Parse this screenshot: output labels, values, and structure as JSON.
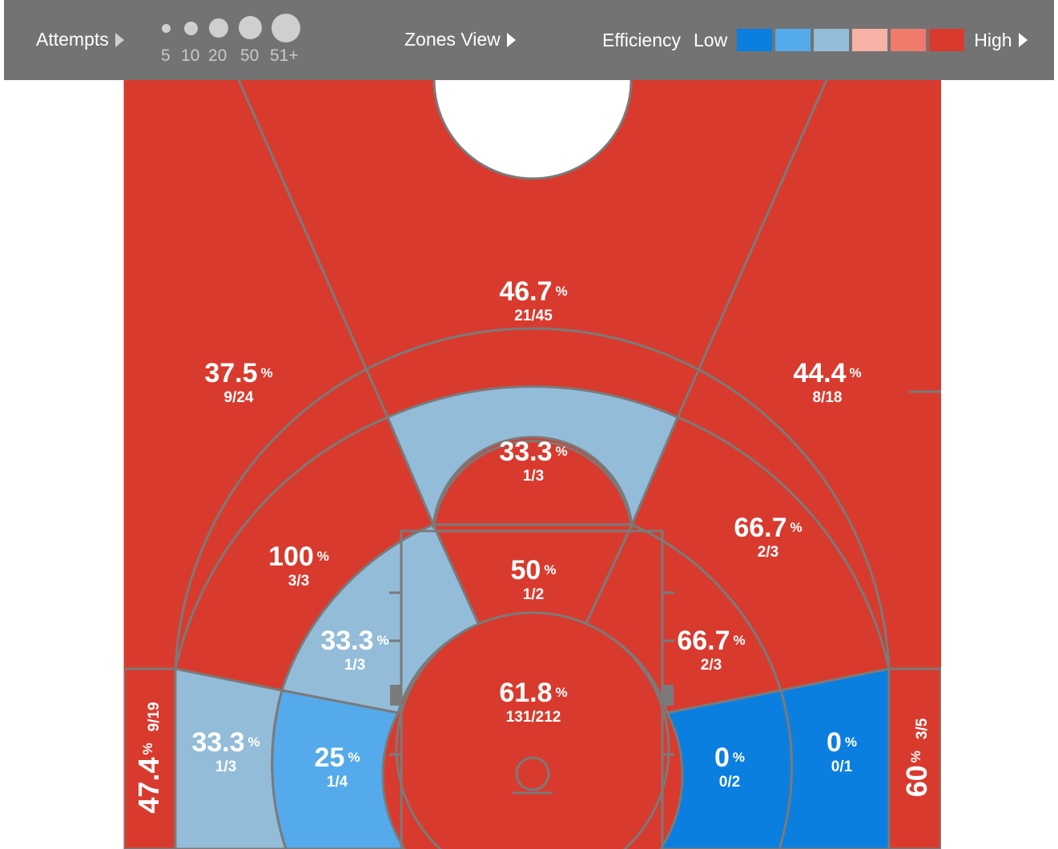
{
  "toolbar": {
    "attempts_label": "Attempts",
    "size_scale": [
      "5",
      "10",
      "20",
      "50",
      "51+"
    ],
    "zones_view_label": "Zones View",
    "efficiency_label": "Efficiency",
    "low_label": "Low",
    "high_label": "High",
    "scale_colors": [
      "#0a7fe0",
      "#54aaea",
      "#93bcd9",
      "#f7b1a6",
      "#f07a6c",
      "#d93a2e"
    ]
  },
  "colors": {
    "background": "#ffffff",
    "toolbar": "#737373",
    "court_line": "#7a7a7a",
    "high": "#d93a2e",
    "mid_light": "#93bcd9",
    "low_mid": "#54aaea",
    "low": "#0a7fe0"
  },
  "zones": {
    "top_three": {
      "pct": "46.7",
      "frac": "21/45",
      "color": "#d93a2e"
    },
    "left_wing_three": {
      "pct": "37.5",
      "frac": "9/24",
      "color": "#d93a2e"
    },
    "right_wing_three": {
      "pct": "44.4",
      "frac": "8/18",
      "color": "#d93a2e"
    },
    "top_mid": {
      "pct": "33.3",
      "frac": "1/3",
      "color": "#93bcd9"
    },
    "left_mid": {
      "pct": "100",
      "frac": "3/3",
      "color": "#d93a2e"
    },
    "right_mid": {
      "pct": "66.7",
      "frac": "2/3",
      "color": "#d93a2e"
    },
    "paint_top": {
      "pct": "50",
      "frac": "1/2",
      "color": "#d93a2e"
    },
    "left_short": {
      "pct": "33.3",
      "frac": "1/3",
      "color": "#93bcd9"
    },
    "right_short": {
      "pct": "66.7",
      "frac": "2/3",
      "color": "#d93a2e"
    },
    "restricted": {
      "pct": "61.8",
      "frac": "131/212",
      "color": "#d93a2e"
    },
    "left_baseline_mid": {
      "pct": "33.3",
      "frac": "1/3",
      "color": "#93bcd9"
    },
    "left_baseline_short": {
      "pct": "25",
      "frac": "1/4",
      "color": "#54aaea"
    },
    "right_baseline_short": {
      "pct": "0",
      "frac": "0/2",
      "color": "#0a7fe0"
    },
    "right_baseline_mid": {
      "pct": "0",
      "frac": "0/1",
      "color": "#0a7fe0"
    },
    "left_corner_three": {
      "pct": "47.4",
      "frac": "9/19",
      "color": "#d93a2e"
    },
    "right_corner_three": {
      "pct": "60",
      "frac": "3/5",
      "color": "#d93a2e"
    }
  },
  "pct_symbol": "%"
}
